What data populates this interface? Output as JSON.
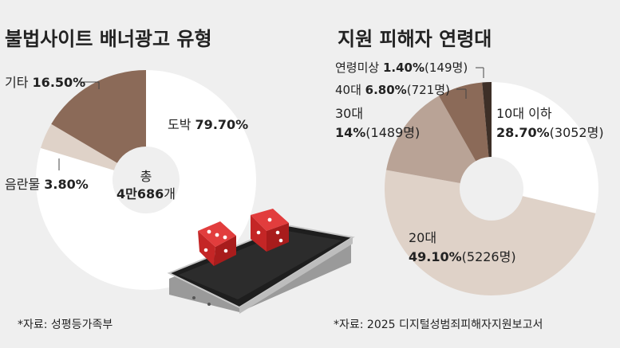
{
  "colors": {
    "bg": "#efefef",
    "white": "#ffffff",
    "tan": "#dfd2c8",
    "taupe": "#b9a396",
    "brown": "#8b6a58",
    "dark": "#3d2f27"
  },
  "chart_data": [
    {
      "type": "pie",
      "title": "불법사이트 배너광고 유형",
      "slices": [
        {
          "name": "도박",
          "value": 79.7,
          "value_text": "79.70%",
          "color": "#ffffff"
        },
        {
          "name": "음란물",
          "value": 3.8,
          "value_text": "3.80%",
          "color": "#dfd2c8"
        },
        {
          "name": "기타",
          "value": 16.5,
          "value_text": "16.50%",
          "color": "#8b6a58"
        }
      ],
      "center": {
        "line1": "총",
        "line2_bold": "4만686",
        "line2_tail": "개"
      },
      "source": "*자료: 성평등가족부"
    },
    {
      "type": "pie",
      "title": "지원 피해자 연령대",
      "slices": [
        {
          "name": "10대 이하",
          "value": 28.7,
          "value_text": "28.70%",
          "count_text": "(3052명)",
          "color": "#ffffff"
        },
        {
          "name": "20대",
          "value": 49.1,
          "value_text": "49.10%",
          "count_text": "(5226명)",
          "color": "#dfd2c8"
        },
        {
          "name": "30대",
          "value": 14,
          "value_text": "14%",
          "count_text": "(1489명)",
          "color": "#b9a396"
        },
        {
          "name": "40대",
          "value": 6.8,
          "value_text": "6.80%",
          "count_text": "(721명)",
          "color": "#8b6a58"
        },
        {
          "name": "연령미상",
          "value": 1.4,
          "value_text": "1.40%",
          "count_text": "(149명)",
          "color": "#3d2f27"
        }
      ],
      "source": "*자료: 2025 디지털성범죄피해자지원보고서"
    }
  ]
}
